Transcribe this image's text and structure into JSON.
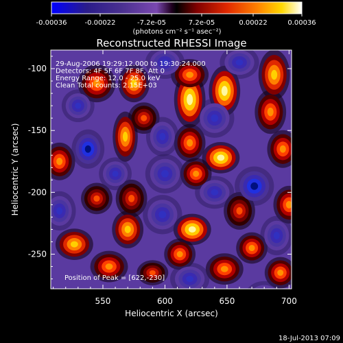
{
  "chart_data": {
    "type": "heatmap",
    "title": "Reconstructed RHESSI Image",
    "xlabel": "Heliocentric X (arcsec)",
    "ylabel": "Heliocentric Y (arcsec)",
    "xlim": [
      508,
      702
    ],
    "ylim": [
      -278,
      -85
    ],
    "x_ticks": [
      550,
      600,
      650,
      700
    ],
    "y_ticks": [
      -100,
      -150,
      -200,
      -250
    ],
    "grid": false,
    "colorbar": {
      "placement": "top",
      "range": [
        -0.00036,
        0.00036
      ],
      "tick_values": [
        -0.00036,
        -0.00022,
        -7.2e-05,
        7.2e-05,
        0.00022,
        0.00036
      ],
      "tick_labels": [
        "-0.00036",
        "-0.00022",
        "-7.2e-05",
        "7.2e-05",
        "0.00022",
        "0.00036"
      ],
      "unit_label": "(photons cm⁻² s⁻¹ asec⁻²)"
    },
    "info_lines": [
      "29-Aug-2006 19:29:12.000 to 19:30:24.000",
      "Detectors: 4F 5F 6F 7F 8F, Att 0",
      "Energy Range: 12.0 - 25.0 keV",
      "Clean     Total counts: 2.15E+03"
    ],
    "peak_label": "Position of Peak = [622,-230]",
    "peak": {
      "x": 622,
      "y": -230
    },
    "blobs": [
      {
        "x": 620,
        "y": -125,
        "v": 1.0,
        "sx": 5,
        "sy": 9
      },
      {
        "x": 648,
        "y": -118,
        "v": 0.9,
        "sx": 5,
        "sy": 8
      },
      {
        "x": 688,
        "y": -105,
        "v": 0.7,
        "sx": 5,
        "sy": 8
      },
      {
        "x": 685,
        "y": -135,
        "v": 0.65,
        "sx": 5,
        "sy": 7
      },
      {
        "x": 575,
        "y": -112,
        "v": 0.75,
        "sx": 5,
        "sy": 6
      },
      {
        "x": 545,
        "y": -112,
        "v": 0.55,
        "sx": 6,
        "sy": 6
      },
      {
        "x": 620,
        "y": -105,
        "v": 0.55,
        "sx": 6,
        "sy": 5
      },
      {
        "x": 568,
        "y": -155,
        "v": 0.85,
        "sx": 4,
        "sy": 8
      },
      {
        "x": 583,
        "y": -140,
        "v": 0.45,
        "sx": 5,
        "sy": 5
      },
      {
        "x": 620,
        "y": -160,
        "v": 0.6,
        "sx": 5,
        "sy": 6
      },
      {
        "x": 645,
        "y": -172,
        "v": 0.9,
        "sx": 6,
        "sy": 5
      },
      {
        "x": 625,
        "y": -185,
        "v": 0.55,
        "sx": 5,
        "sy": 5
      },
      {
        "x": 695,
        "y": -165,
        "v": 0.6,
        "sx": 5,
        "sy": 6
      },
      {
        "x": 515,
        "y": -175,
        "v": 0.55,
        "sx": 5,
        "sy": 6
      },
      {
        "x": 573,
        "y": -205,
        "v": 0.45,
        "sx": 5,
        "sy": 6
      },
      {
        "x": 660,
        "y": -215,
        "v": 0.45,
        "sx": 5,
        "sy": 6
      },
      {
        "x": 700,
        "y": -210,
        "v": 0.55,
        "sx": 5,
        "sy": 6
      },
      {
        "x": 622,
        "y": -230,
        "v": 1.0,
        "sx": 6,
        "sy": 5
      },
      {
        "x": 612,
        "y": -250,
        "v": 0.55,
        "sx": 5,
        "sy": 5
      },
      {
        "x": 570,
        "y": -230,
        "v": 0.7,
        "sx": 5,
        "sy": 6
      },
      {
        "x": 527,
        "y": -242,
        "v": 0.8,
        "sx": 6,
        "sy": 5
      },
      {
        "x": 555,
        "y": -260,
        "v": 0.55,
        "sx": 6,
        "sy": 5
      },
      {
        "x": 590,
        "y": -265,
        "v": 0.45,
        "sx": 5,
        "sy": 4
      },
      {
        "x": 648,
        "y": -262,
        "v": 0.65,
        "sx": 6,
        "sy": 5
      },
      {
        "x": 670,
        "y": -245,
        "v": 0.6,
        "sx": 5,
        "sy": 5
      },
      {
        "x": 693,
        "y": -265,
        "v": 0.55,
        "sx": 5,
        "sy": 5
      },
      {
        "x": 545,
        "y": -205,
        "v": 0.35,
        "sx": 5,
        "sy": 5
      },
      {
        "x": 538,
        "y": -165,
        "v": -0.8,
        "sx": 5,
        "sy": 6
      },
      {
        "x": 672,
        "y": -195,
        "v": -1.0,
        "sx": 6,
        "sy": 6
      },
      {
        "x": 598,
        "y": -155,
        "v": -0.55,
        "sx": 5,
        "sy": 6
      },
      {
        "x": 640,
        "y": -140,
        "v": -0.5,
        "sx": 6,
        "sy": 6
      },
      {
        "x": 598,
        "y": -218,
        "v": -0.5,
        "sx": 6,
        "sy": 6
      },
      {
        "x": 640,
        "y": -200,
        "v": -0.5,
        "sx": 6,
        "sy": 5
      },
      {
        "x": 515,
        "y": -215,
        "v": -0.5,
        "sx": 5,
        "sy": 6
      },
      {
        "x": 690,
        "y": -235,
        "v": -0.5,
        "sx": 5,
        "sy": 6
      },
      {
        "x": 600,
        "y": -185,
        "v": -0.45,
        "sx": 6,
        "sy": 6
      },
      {
        "x": 530,
        "y": -130,
        "v": -0.5,
        "sx": 5,
        "sy": 5
      },
      {
        "x": 600,
        "y": -95,
        "v": -0.4,
        "sx": 6,
        "sy": 5
      },
      {
        "x": 660,
        "y": -95,
        "v": -0.45,
        "sx": 6,
        "sy": 5
      },
      {
        "x": 560,
        "y": -185,
        "v": -0.5,
        "sx": 5,
        "sy": 5
      },
      {
        "x": 620,
        "y": -270,
        "v": -0.45,
        "sx": 6,
        "sy": 5
      },
      {
        "x": 680,
        "y": -285,
        "v": -0.4,
        "sx": 6,
        "sy": 5
      }
    ],
    "colormap_stops": [
      "#0000ff",
      "#30207a",
      "#4a3080",
      "#7a40a8",
      "#000000",
      "#8a0000",
      "#e03000",
      "#ff8000",
      "#ffe000",
      "#ffffff"
    ]
  },
  "footer": {
    "timestamp": "18-Jul-2013 07:09"
  }
}
